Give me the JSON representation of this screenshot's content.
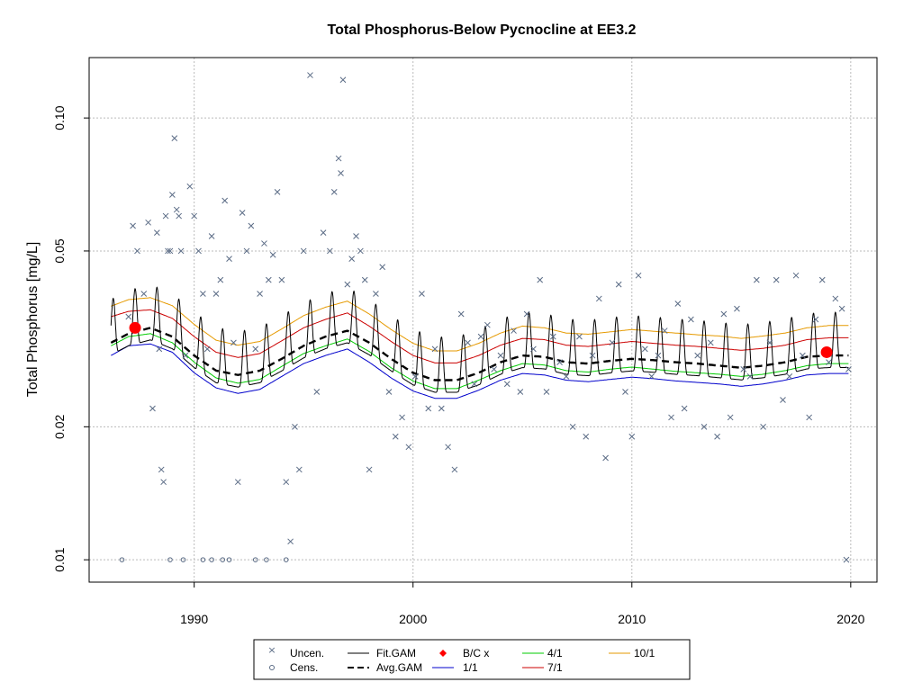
{
  "chart_data": {
    "type": "line",
    "title": "Total Phosphorus-Below Pycnocline at EE3.2",
    "ylabel": "Total Phosphorus [mg/L]",
    "xlabel": "",
    "xlim": [
      1985.2,
      2021.2
    ],
    "ylim": [
      0.0089,
      0.137
    ],
    "log_y": true,
    "grid": true,
    "x_ticks": [
      {
        "value": 1990,
        "label": "1990"
      },
      {
        "value": 2000,
        "label": "2000"
      },
      {
        "value": 2010,
        "label": "2010"
      },
      {
        "value": 2020,
        "label": "2020"
      }
    ],
    "y_ticks": [
      {
        "value": 0.01,
        "label": "0.01"
      },
      {
        "value": 0.02,
        "label": "0.02"
      },
      {
        "value": 0.05,
        "label": "0.05"
      },
      {
        "value": 0.1,
        "label": "0.10"
      }
    ],
    "uncensored": [
      [
        1987.0,
        0.0355
      ],
      [
        1987.2,
        0.057
      ],
      [
        1987.4,
        0.05
      ],
      [
        1987.7,
        0.04
      ],
      [
        1987.9,
        0.058
      ],
      [
        1988.1,
        0.022
      ],
      [
        1988.3,
        0.055
      ],
      [
        1988.4,
        0.03
      ],
      [
        1988.5,
        0.016
      ],
      [
        1988.6,
        0.015
      ],
      [
        1988.7,
        0.06
      ],
      [
        1988.8,
        0.05
      ],
      [
        1988.9,
        0.05
      ],
      [
        1989.0,
        0.067
      ],
      [
        1989.1,
        0.09
      ],
      [
        1989.2,
        0.062
      ],
      [
        1989.3,
        0.06
      ],
      [
        1989.4,
        0.05
      ],
      [
        1989.6,
        0.029
      ],
      [
        1989.8,
        0.07
      ],
      [
        1990.0,
        0.06
      ],
      [
        1990.2,
        0.05
      ],
      [
        1990.4,
        0.04
      ],
      [
        1990.6,
        0.03
      ],
      [
        1990.8,
        0.054
      ],
      [
        1991.0,
        0.04
      ],
      [
        1991.2,
        0.043
      ],
      [
        1991.4,
        0.065
      ],
      [
        1991.6,
        0.048
      ],
      [
        1991.8,
        0.031
      ],
      [
        1992.0,
        0.015
      ],
      [
        1992.2,
        0.061
      ],
      [
        1992.4,
        0.05
      ],
      [
        1992.6,
        0.057
      ],
      [
        1992.8,
        0.03
      ],
      [
        1993.0,
        0.04
      ],
      [
        1993.2,
        0.052
      ],
      [
        1993.4,
        0.043
      ],
      [
        1993.6,
        0.049
      ],
      [
        1993.8,
        0.068
      ],
      [
        1994.0,
        0.043
      ],
      [
        1994.2,
        0.015
      ],
      [
        1994.4,
        0.011
      ],
      [
        1994.6,
        0.02
      ],
      [
        1994.8,
        0.016
      ],
      [
        1995.0,
        0.05
      ],
      [
        1995.3,
        0.125
      ],
      [
        1995.6,
        0.024
      ],
      [
        1995.9,
        0.055
      ],
      [
        1996.2,
        0.05
      ],
      [
        1996.4,
        0.068
      ],
      [
        1996.6,
        0.081
      ],
      [
        1996.7,
        0.075
      ],
      [
        1996.8,
        0.122
      ],
      [
        1997.0,
        0.042
      ],
      [
        1997.2,
        0.048
      ],
      [
        1997.4,
        0.054
      ],
      [
        1997.6,
        0.05
      ],
      [
        1997.8,
        0.043
      ],
      [
        1998.0,
        0.016
      ],
      [
        1998.3,
        0.04
      ],
      [
        1998.6,
        0.046
      ],
      [
        1998.9,
        0.024
      ],
      [
        1999.2,
        0.019
      ],
      [
        1999.5,
        0.021
      ],
      [
        1999.8,
        0.018
      ],
      [
        2000.1,
        0.026
      ],
      [
        2000.4,
        0.04
      ],
      [
        2000.7,
        0.022
      ],
      [
        2001.0,
        0.03
      ],
      [
        2001.3,
        0.022
      ],
      [
        2001.6,
        0.018
      ],
      [
        2001.9,
        0.016
      ],
      [
        2002.2,
        0.036
      ],
      [
        2002.5,
        0.031
      ],
      [
        2002.8,
        0.025
      ],
      [
        2003.1,
        0.032
      ],
      [
        2003.4,
        0.034
      ],
      [
        2003.7,
        0.027
      ],
      [
        2004.0,
        0.029
      ],
      [
        2004.3,
        0.025
      ],
      [
        2004.6,
        0.033
      ],
      [
        2004.9,
        0.024
      ],
      [
        2005.2,
        0.036
      ],
      [
        2005.5,
        0.03
      ],
      [
        2005.8,
        0.043
      ],
      [
        2006.1,
        0.024
      ],
      [
        2006.4,
        0.032
      ],
      [
        2006.7,
        0.028
      ],
      [
        2007.0,
        0.026
      ],
      [
        2007.3,
        0.02
      ],
      [
        2007.6,
        0.032
      ],
      [
        2007.9,
        0.019
      ],
      [
        2008.2,
        0.029
      ],
      [
        2008.5,
        0.039
      ],
      [
        2008.8,
        0.017
      ],
      [
        2009.1,
        0.031
      ],
      [
        2009.4,
        0.042
      ],
      [
        2009.7,
        0.024
      ],
      [
        2010.0,
        0.019
      ],
      [
        2010.3,
        0.044
      ],
      [
        2010.6,
        0.03
      ],
      [
        2010.9,
        0.026
      ],
      [
        2011.2,
        0.029
      ],
      [
        2011.5,
        0.033
      ],
      [
        2011.8,
        0.021
      ],
      [
        2012.1,
        0.038
      ],
      [
        2012.4,
        0.022
      ],
      [
        2012.7,
        0.035
      ],
      [
        2013.0,
        0.029
      ],
      [
        2013.3,
        0.02
      ],
      [
        2013.6,
        0.031
      ],
      [
        2013.9,
        0.019
      ],
      [
        2014.2,
        0.036
      ],
      [
        2014.5,
        0.021
      ],
      [
        2014.8,
        0.037
      ],
      [
        2015.1,
        0.027
      ],
      [
        2015.4,
        0.026
      ],
      [
        2015.7,
        0.043
      ],
      [
        2016.0,
        0.02
      ],
      [
        2016.3,
        0.031
      ],
      [
        2016.6,
        0.043
      ],
      [
        2016.9,
        0.023
      ],
      [
        2017.2,
        0.026
      ],
      [
        2017.5,
        0.044
      ],
      [
        2017.8,
        0.029
      ],
      [
        2018.1,
        0.021
      ],
      [
        2018.4,
        0.035
      ],
      [
        2018.7,
        0.043
      ],
      [
        2019.0,
        0.028
      ],
      [
        2019.3,
        0.039
      ],
      [
        2019.6,
        0.037
      ],
      [
        2019.8,
        0.01
      ],
      [
        2019.9,
        0.027
      ]
    ],
    "censored": [
      [
        1986.7,
        0.01
      ],
      [
        1988.9,
        0.01
      ],
      [
        1989.5,
        0.01
      ],
      [
        1990.4,
        0.01
      ],
      [
        1990.8,
        0.01
      ],
      [
        1991.3,
        0.01
      ],
      [
        1991.6,
        0.01
      ],
      [
        1992.8,
        0.01
      ],
      [
        1993.3,
        0.01
      ],
      [
        1994.2,
        0.01
      ]
    ],
    "avg_gam": [
      [
        1986.2,
        0.031
      ],
      [
        1987.0,
        0.0325
      ],
      [
        1988.0,
        0.0335
      ],
      [
        1989.0,
        0.032
      ],
      [
        1990.0,
        0.029
      ],
      [
        1991.0,
        0.0268
      ],
      [
        1992.0,
        0.0262
      ],
      [
        1993.0,
        0.0268
      ],
      [
        1994.0,
        0.0285
      ],
      [
        1995.0,
        0.0305
      ],
      [
        1996.0,
        0.032
      ],
      [
        1997.0,
        0.033
      ],
      [
        1998.0,
        0.031
      ],
      [
        1999.0,
        0.0285
      ],
      [
        2000.0,
        0.0265
      ],
      [
        2001.0,
        0.0255
      ],
      [
        2002.0,
        0.0255
      ],
      [
        2003.0,
        0.0265
      ],
      [
        2004.0,
        0.028
      ],
      [
        2005.0,
        0.029
      ],
      [
        2006.0,
        0.0288
      ],
      [
        2007.0,
        0.028
      ],
      [
        2008.0,
        0.0278
      ],
      [
        2009.0,
        0.0282
      ],
      [
        2010.0,
        0.0285
      ],
      [
        2011.0,
        0.0283
      ],
      [
        2012.0,
        0.028
      ],
      [
        2013.0,
        0.0278
      ],
      [
        2014.0,
        0.0275
      ],
      [
        2015.0,
        0.0272
      ],
      [
        2016.0,
        0.0275
      ],
      [
        2017.0,
        0.028
      ],
      [
        2018.0,
        0.0288
      ],
      [
        2019.0,
        0.029
      ],
      [
        2019.9,
        0.029
      ]
    ],
    "seasonal_amplitude": 0.18,
    "lines": {
      "d1_1": [
        [
          1986.2,
          0.029
        ],
        [
          1987.0,
          0.0305
        ],
        [
          1988.0,
          0.0308
        ],
        [
          1989.0,
          0.0295
        ],
        [
          1990.0,
          0.0265
        ],
        [
          1991.0,
          0.0245
        ],
        [
          1992.0,
          0.0238
        ],
        [
          1993.0,
          0.0243
        ],
        [
          1994.0,
          0.026
        ],
        [
          1995.0,
          0.0278
        ],
        [
          1996.0,
          0.029
        ],
        [
          1997.0,
          0.03
        ],
        [
          1998.0,
          0.028
        ],
        [
          1999.0,
          0.0258
        ],
        [
          2000.0,
          0.0241
        ],
        [
          2001.0,
          0.0232
        ],
        [
          2002.0,
          0.0232
        ],
        [
          2003.0,
          0.0242
        ],
        [
          2004.0,
          0.0255
        ],
        [
          2005.0,
          0.0264
        ],
        [
          2006.0,
          0.0262
        ],
        [
          2007.0,
          0.0255
        ],
        [
          2008.0,
          0.0253
        ],
        [
          2009.0,
          0.0256
        ],
        [
          2010.0,
          0.0259
        ],
        [
          2011.0,
          0.0257
        ],
        [
          2012.0,
          0.0254
        ],
        [
          2013.0,
          0.0252
        ],
        [
          2014.0,
          0.025
        ],
        [
          2015.0,
          0.0247
        ],
        [
          2016.0,
          0.025
        ],
        [
          2017.0,
          0.0255
        ],
        [
          2018.0,
          0.0262
        ],
        [
          2019.0,
          0.0264
        ],
        [
          2019.9,
          0.0264
        ]
      ],
      "d4_1": [
        [
          1986.2,
          0.0305
        ],
        [
          1987.0,
          0.032
        ],
        [
          1988.0,
          0.0325
        ],
        [
          1989.0,
          0.031
        ],
        [
          1990.0,
          0.028
        ],
        [
          1991.0,
          0.0258
        ],
        [
          1992.0,
          0.0251
        ],
        [
          1993.0,
          0.0256
        ],
        [
          1994.0,
          0.0274
        ],
        [
          1995.0,
          0.0293
        ],
        [
          1996.0,
          0.0305
        ],
        [
          1997.0,
          0.0316
        ],
        [
          1998.0,
          0.0296
        ],
        [
          1999.0,
          0.0272
        ],
        [
          2000.0,
          0.0254
        ],
        [
          2001.0,
          0.0244
        ],
        [
          2002.0,
          0.0244
        ],
        [
          2003.0,
          0.0255
        ],
        [
          2004.0,
          0.0268
        ],
        [
          2005.0,
          0.0278
        ],
        [
          2006.0,
          0.0276
        ],
        [
          2007.0,
          0.0268
        ],
        [
          2008.0,
          0.0266
        ],
        [
          2009.0,
          0.027
        ],
        [
          2010.0,
          0.0273
        ],
        [
          2011.0,
          0.027
        ],
        [
          2012.0,
          0.0267
        ],
        [
          2013.0,
          0.0265
        ],
        [
          2014.0,
          0.0263
        ],
        [
          2015.0,
          0.026
        ],
        [
          2016.0,
          0.0263
        ],
        [
          2017.0,
          0.0268
        ],
        [
          2018.0,
          0.0275
        ],
        [
          2019.0,
          0.0278
        ],
        [
          2019.9,
          0.0278
        ]
      ],
      "d7_1": [
        [
          1986.2,
          0.0355
        ],
        [
          1987.0,
          0.0365
        ],
        [
          1988.0,
          0.0368
        ],
        [
          1989.0,
          0.0352
        ],
        [
          1990.0,
          0.032
        ],
        [
          1991.0,
          0.0295
        ],
        [
          1992.0,
          0.0287
        ],
        [
          1993.0,
          0.0293
        ],
        [
          1994.0,
          0.0313
        ],
        [
          1995.0,
          0.0335
        ],
        [
          1996.0,
          0.035
        ],
        [
          1997.0,
          0.0362
        ],
        [
          1998.0,
          0.0338
        ],
        [
          1999.0,
          0.0312
        ],
        [
          2000.0,
          0.029
        ],
        [
          2001.0,
          0.0279
        ],
        [
          2002.0,
          0.0279
        ],
        [
          2003.0,
          0.029
        ],
        [
          2004.0,
          0.0306
        ],
        [
          2005.0,
          0.0317
        ],
        [
          2006.0,
          0.0315
        ],
        [
          2007.0,
          0.0306
        ],
        [
          2008.0,
          0.0304
        ],
        [
          2009.0,
          0.0308
        ],
        [
          2010.0,
          0.0312
        ],
        [
          2011.0,
          0.0309
        ],
        [
          2012.0,
          0.0306
        ],
        [
          2013.0,
          0.0304
        ],
        [
          2014.0,
          0.0301
        ],
        [
          2015.0,
          0.0298
        ],
        [
          2016.0,
          0.0301
        ],
        [
          2017.0,
          0.0306
        ],
        [
          2018.0,
          0.0315
        ],
        [
          2019.0,
          0.0318
        ],
        [
          2019.9,
          0.0318
        ]
      ],
      "d10_1": [
        [
          1986.2,
          0.0375
        ],
        [
          1987.0,
          0.0388
        ],
        [
          1988.0,
          0.0392
        ],
        [
          1989.0,
          0.0376
        ],
        [
          1990.0,
          0.0341
        ],
        [
          1991.0,
          0.0314
        ],
        [
          1992.0,
          0.0306
        ],
        [
          1993.0,
          0.0312
        ],
        [
          1994.0,
          0.0333
        ],
        [
          1995.0,
          0.0357
        ],
        [
          1996.0,
          0.0373
        ],
        [
          1997.0,
          0.0385
        ],
        [
          1998.0,
          0.036
        ],
        [
          1999.0,
          0.0332
        ],
        [
          2000.0,
          0.0309
        ],
        [
          2001.0,
          0.0297
        ],
        [
          2002.0,
          0.0297
        ],
        [
          2003.0,
          0.0309
        ],
        [
          2004.0,
          0.0326
        ],
        [
          2005.0,
          0.0338
        ],
        [
          2006.0,
          0.0335
        ],
        [
          2007.0,
          0.0326
        ],
        [
          2008.0,
          0.0324
        ],
        [
          2009.0,
          0.0328
        ],
        [
          2010.0,
          0.0332
        ],
        [
          2011.0,
          0.0329
        ],
        [
          2012.0,
          0.0326
        ],
        [
          2013.0,
          0.0323
        ],
        [
          2014.0,
          0.0321
        ],
        [
          2015.0,
          0.0317
        ],
        [
          2016.0,
          0.0321
        ],
        [
          2017.0,
          0.0326
        ],
        [
          2018.0,
          0.0335
        ],
        [
          2019.0,
          0.0339
        ],
        [
          2019.9,
          0.0339
        ]
      ]
    },
    "bc_points": [
      [
        1987.3,
        0.0335
      ],
      [
        2018.9,
        0.0295
      ]
    ],
    "legend": {
      "uncen": "Uncen.",
      "cens": "Cens.",
      "fit_gam": "Fit.GAM",
      "avg_gam": "Avg.GAM",
      "bc": "B/C x",
      "d1_1": "1/1",
      "d4_1": "4/1",
      "d7_1": "7/1",
      "d10_1": "10/1"
    },
    "legend_position": "bottom",
    "colors": {
      "points": "#5a6b85",
      "fit": "#000000",
      "avg": "#000000",
      "bc": "#ff0000",
      "d1_1": "#0000cc",
      "d4_1": "#00cc00",
      "d7_1": "#cc0000",
      "d10_1": "#e69a00",
      "grid": "#bbbbbb"
    }
  }
}
